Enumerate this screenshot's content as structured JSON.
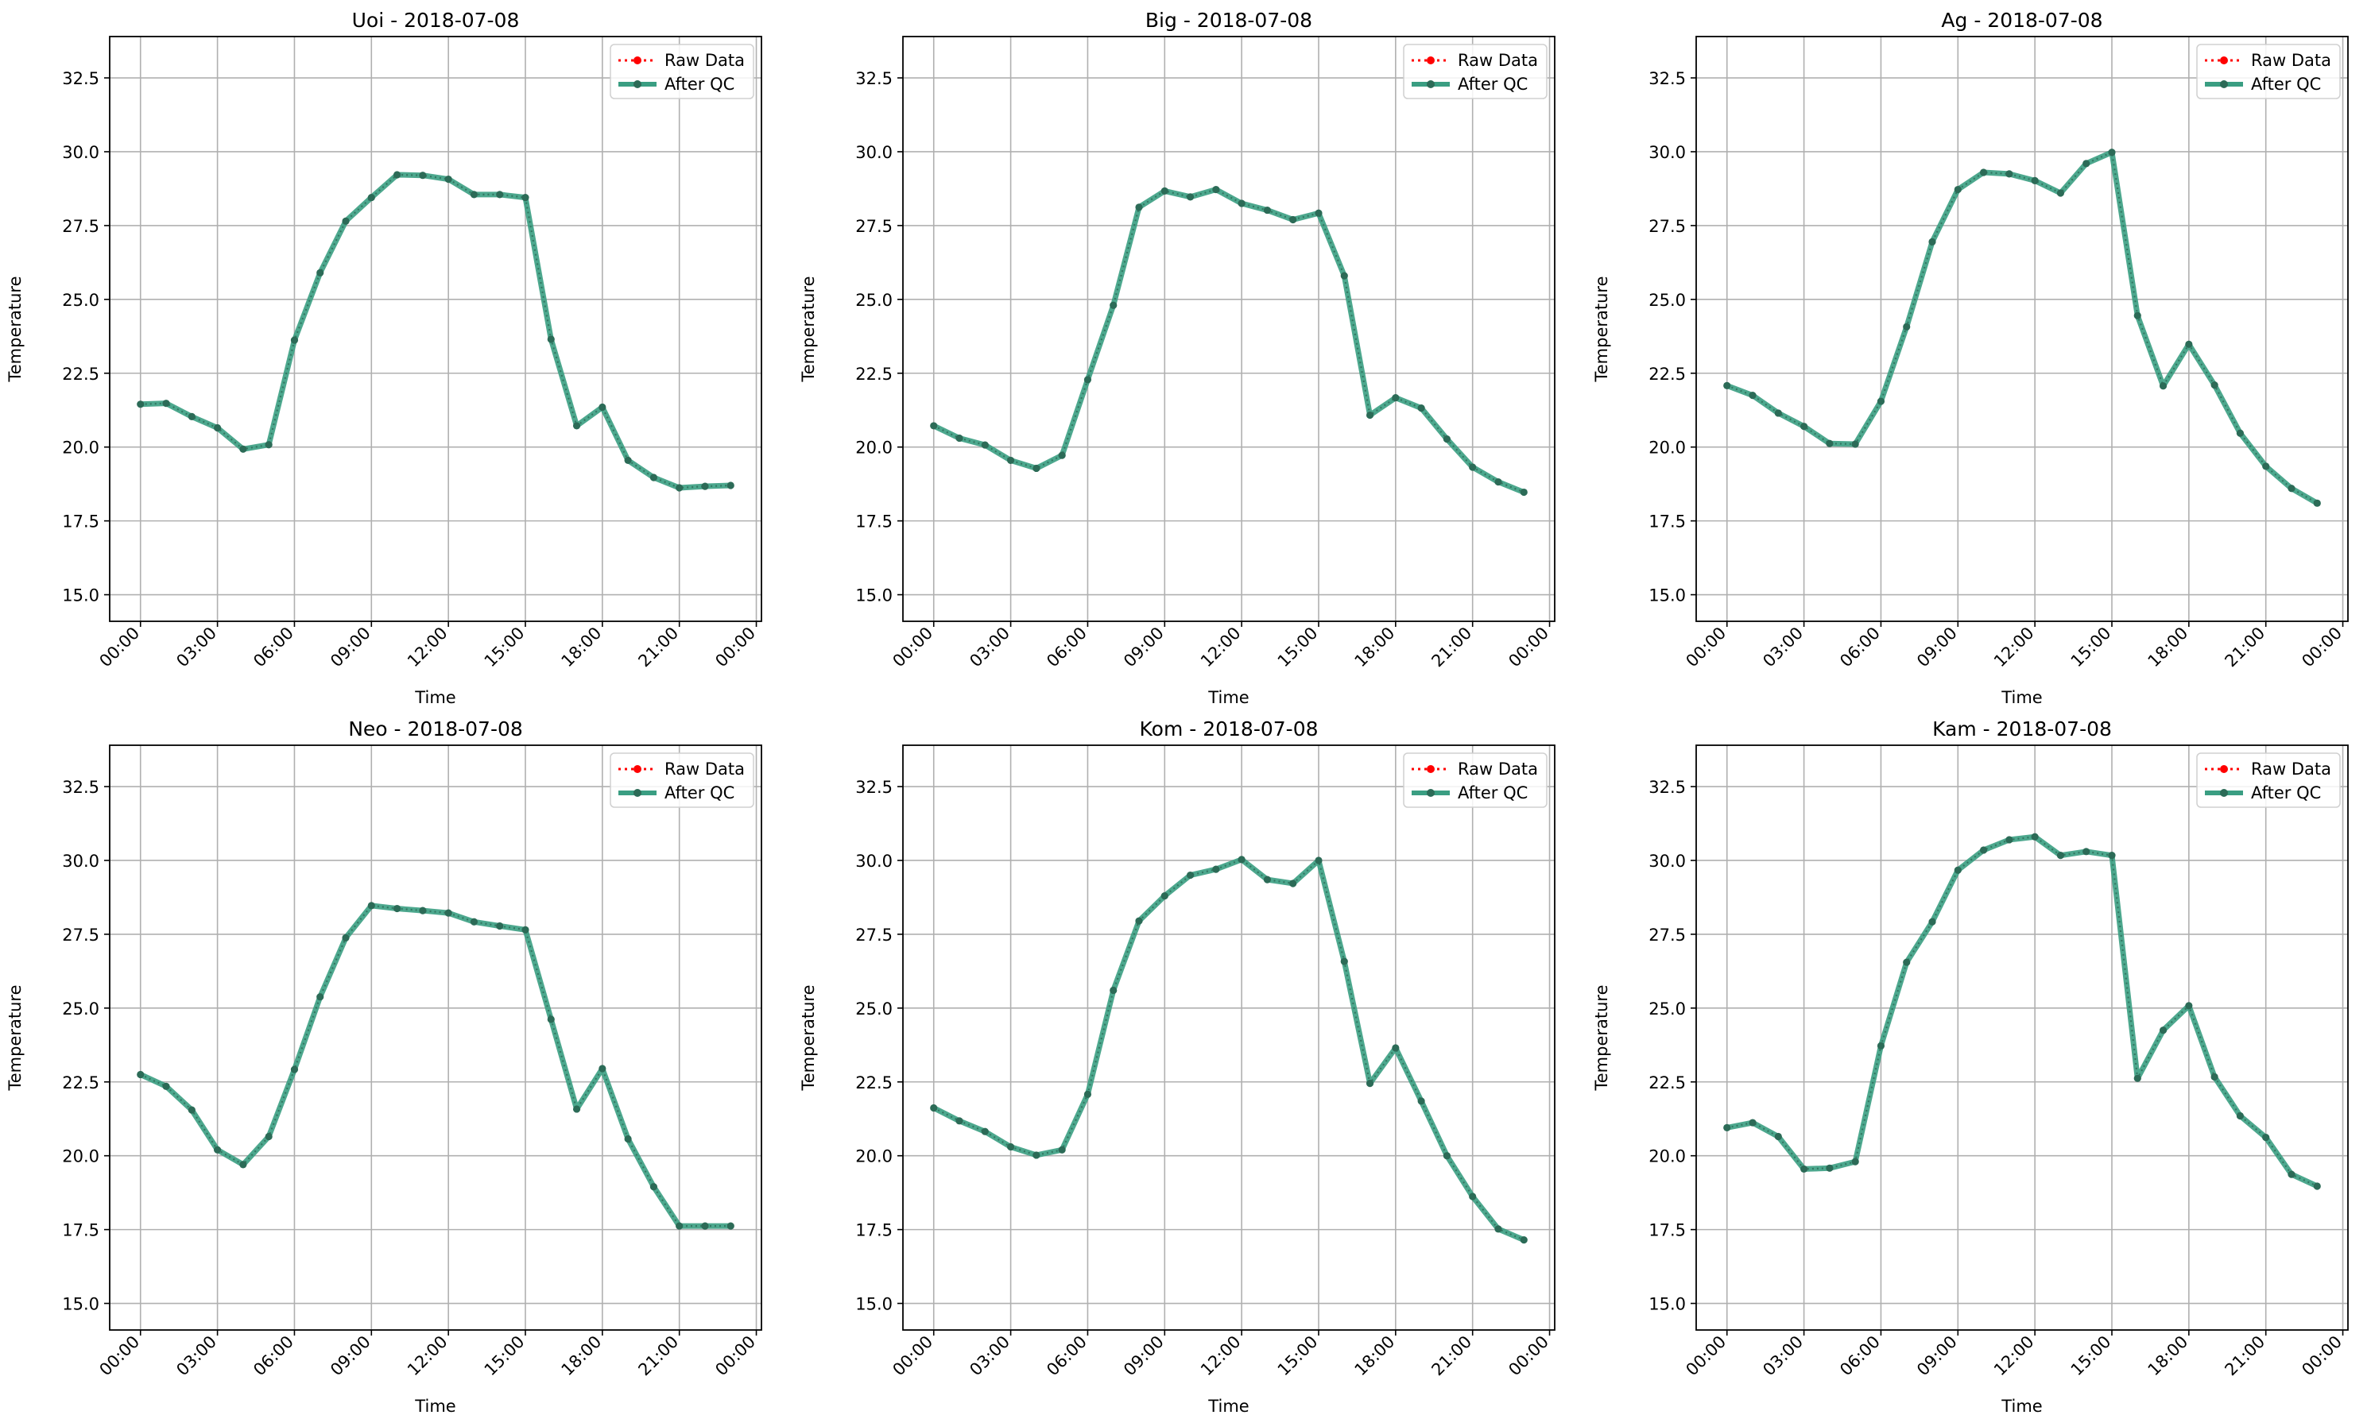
{
  "chart_data": [
    {
      "type": "line",
      "title": "Uoi - 2018-07-08",
      "xlabel": "Time",
      "ylabel": "Temperature",
      "x_ticks": [
        "00:00",
        "03:00",
        "06:00",
        "09:00",
        "12:00",
        "15:00",
        "18:00",
        "21:00",
        "00:00"
      ],
      "y_ticks": [
        "15.0",
        "17.5",
        "20.0",
        "22.5",
        "25.0",
        "27.5",
        "30.0",
        "32.5"
      ],
      "ylim": [
        14.1,
        33.9
      ],
      "xlim": [
        -1.2,
        24.2
      ],
      "grid": true,
      "legend": "top-right",
      "x": [
        0,
        1,
        2,
        3,
        4,
        5,
        6,
        7,
        8,
        9,
        10,
        11,
        12,
        13,
        14,
        15,
        16,
        17,
        18,
        19,
        20,
        21,
        22,
        23
      ],
      "series": [
        {
          "name": "Raw Data",
          "values": [
            21.45,
            21.48,
            21.03,
            20.65,
            19.93,
            20.08,
            23.62,
            25.9,
            27.65,
            28.45,
            29.22,
            29.2,
            29.07,
            28.55,
            28.55,
            28.45,
            23.65,
            20.72,
            21.35,
            19.55,
            18.97,
            18.62,
            18.67,
            18.7
          ]
        },
        {
          "name": "After QC",
          "values": [
            21.45,
            21.48,
            21.03,
            20.65,
            19.93,
            20.08,
            23.62,
            25.9,
            27.65,
            28.45,
            29.22,
            29.2,
            29.07,
            28.55,
            28.55,
            28.45,
            23.65,
            20.72,
            21.35,
            19.55,
            18.97,
            18.62,
            18.67,
            18.7
          ]
        }
      ]
    },
    {
      "type": "line",
      "title": "Big - 2018-07-08",
      "xlabel": "Time",
      "ylabel": "Temperature",
      "x_ticks": [
        "00:00",
        "03:00",
        "06:00",
        "09:00",
        "12:00",
        "15:00",
        "18:00",
        "21:00",
        "00:00"
      ],
      "y_ticks": [
        "15.0",
        "17.5",
        "20.0",
        "22.5",
        "25.0",
        "27.5",
        "30.0",
        "32.5"
      ],
      "ylim": [
        14.1,
        33.9
      ],
      "xlim": [
        -1.2,
        24.2
      ],
      "grid": true,
      "legend": "top-right",
      "x": [
        0,
        1,
        2,
        3,
        4,
        5,
        6,
        7,
        8,
        9,
        10,
        11,
        12,
        13,
        14,
        15,
        16,
        17,
        18,
        19,
        20,
        21,
        22,
        23
      ],
      "series": [
        {
          "name": "Raw Data",
          "values": [
            20.72,
            20.3,
            20.07,
            19.55,
            19.28,
            19.72,
            22.28,
            24.8,
            28.12,
            28.67,
            28.47,
            28.72,
            28.25,
            28.02,
            27.7,
            27.92,
            25.8,
            21.08,
            21.67,
            21.32,
            20.27,
            19.32,
            18.82,
            18.47
          ]
        },
        {
          "name": "After QC",
          "values": [
            20.72,
            20.3,
            20.07,
            19.55,
            19.28,
            19.72,
            22.28,
            24.8,
            28.12,
            28.67,
            28.47,
            28.72,
            28.25,
            28.02,
            27.7,
            27.92,
            25.8,
            21.08,
            21.67,
            21.32,
            20.27,
            19.32,
            18.82,
            18.47
          ]
        }
      ]
    },
    {
      "type": "line",
      "title": "Ag - 2018-07-08",
      "xlabel": "Time",
      "ylabel": "Temperature",
      "x_ticks": [
        "00:00",
        "03:00",
        "06:00",
        "09:00",
        "12:00",
        "15:00",
        "18:00",
        "21:00",
        "00:00"
      ],
      "y_ticks": [
        "15.0",
        "17.5",
        "20.0",
        "22.5",
        "25.0",
        "27.5",
        "30.0",
        "32.5"
      ],
      "ylim": [
        14.1,
        33.9
      ],
      "xlim": [
        -1.2,
        24.2
      ],
      "grid": true,
      "legend": "top-right",
      "x": [
        0,
        1,
        2,
        3,
        4,
        5,
        6,
        7,
        8,
        9,
        10,
        11,
        12,
        13,
        14,
        15,
        16,
        17,
        18,
        19,
        20,
        21,
        22,
        23
      ],
      "series": [
        {
          "name": "Raw Data",
          "values": [
            22.08,
            21.75,
            21.15,
            20.7,
            20.12,
            20.1,
            21.55,
            24.07,
            26.95,
            28.72,
            29.3,
            29.25,
            29.02,
            28.6,
            29.6,
            29.98,
            24.45,
            22.07,
            23.48,
            22.1,
            20.47,
            19.35,
            18.6,
            18.1
          ]
        },
        {
          "name": "After QC",
          "values": [
            22.08,
            21.75,
            21.15,
            20.7,
            20.12,
            20.1,
            21.55,
            24.07,
            26.95,
            28.72,
            29.3,
            29.25,
            29.02,
            28.6,
            29.6,
            29.98,
            24.45,
            22.07,
            23.48,
            22.1,
            20.47,
            19.35,
            18.6,
            18.1
          ]
        }
      ]
    },
    {
      "type": "line",
      "title": "Neo - 2018-07-08",
      "xlabel": "Time",
      "ylabel": "Temperature",
      "x_ticks": [
        "00:00",
        "03:00",
        "06:00",
        "09:00",
        "12:00",
        "15:00",
        "18:00",
        "21:00",
        "00:00"
      ],
      "y_ticks": [
        "15.0",
        "17.5",
        "20.0",
        "22.5",
        "25.0",
        "27.5",
        "30.0",
        "32.5"
      ],
      "ylim": [
        14.1,
        33.9
      ],
      "xlim": [
        -1.2,
        24.2
      ],
      "grid": true,
      "legend": "top-right",
      "x": [
        0,
        1,
        2,
        3,
        4,
        5,
        6,
        7,
        8,
        9,
        10,
        11,
        12,
        13,
        14,
        15,
        16,
        17,
        18,
        19,
        20,
        21,
        22,
        23
      ],
      "series": [
        {
          "name": "Raw Data",
          "values": [
            22.75,
            22.35,
            21.55,
            20.2,
            19.7,
            20.65,
            22.92,
            25.38,
            27.38,
            28.47,
            28.37,
            28.3,
            28.22,
            27.92,
            27.78,
            27.65,
            24.62,
            21.58,
            22.95,
            20.57,
            18.95,
            17.62,
            17.62,
            17.62
          ]
        },
        {
          "name": "After QC",
          "values": [
            22.75,
            22.35,
            21.55,
            20.2,
            19.7,
            20.65,
            22.92,
            25.38,
            27.38,
            28.47,
            28.37,
            28.3,
            28.22,
            27.92,
            27.78,
            27.65,
            24.62,
            21.58,
            22.95,
            20.57,
            18.95,
            17.62,
            17.62,
            17.62
          ]
        }
      ]
    },
    {
      "type": "line",
      "title": "Kom - 2018-07-08",
      "xlabel": "Time",
      "ylabel": "Temperature",
      "x_ticks": [
        "00:00",
        "03:00",
        "06:00",
        "09:00",
        "12:00",
        "15:00",
        "18:00",
        "21:00",
        "00:00"
      ],
      "y_ticks": [
        "15.0",
        "17.5",
        "20.0",
        "22.5",
        "25.0",
        "27.5",
        "30.0",
        "32.5"
      ],
      "ylim": [
        14.1,
        33.9
      ],
      "xlim": [
        -1.2,
        24.2
      ],
      "grid": true,
      "legend": "top-right",
      "x": [
        0,
        1,
        2,
        3,
        4,
        5,
        6,
        7,
        8,
        9,
        10,
        11,
        12,
        13,
        14,
        15,
        16,
        17,
        18,
        19,
        20,
        21,
        22,
        23
      ],
      "series": [
        {
          "name": "Raw Data",
          "values": [
            21.62,
            21.18,
            20.82,
            20.3,
            20.02,
            20.2,
            22.08,
            25.6,
            27.95,
            28.8,
            29.5,
            29.7,
            30.03,
            29.35,
            29.22,
            30.0,
            26.58,
            22.45,
            23.65,
            21.85,
            20.0,
            18.62,
            17.52,
            17.15
          ]
        },
        {
          "name": "After QC",
          "values": [
            21.62,
            21.18,
            20.82,
            20.3,
            20.02,
            20.2,
            22.08,
            25.6,
            27.95,
            28.8,
            29.5,
            29.7,
            30.03,
            29.35,
            29.22,
            30.0,
            26.58,
            22.45,
            23.65,
            21.85,
            20.0,
            18.62,
            17.52,
            17.15
          ]
        }
      ]
    },
    {
      "type": "line",
      "title": "Kam - 2018-07-08",
      "xlabel": "Time",
      "ylabel": "Temperature",
      "x_ticks": [
        "00:00",
        "03:00",
        "06:00",
        "09:00",
        "12:00",
        "15:00",
        "18:00",
        "21:00",
        "00:00"
      ],
      "y_ticks": [
        "15.0",
        "17.5",
        "20.0",
        "22.5",
        "25.0",
        "27.5",
        "30.0",
        "32.5"
      ],
      "ylim": [
        14.1,
        33.9
      ],
      "xlim": [
        -1.2,
        24.2
      ],
      "grid": true,
      "legend": "top-right",
      "x": [
        0,
        1,
        2,
        3,
        4,
        5,
        6,
        7,
        8,
        9,
        10,
        11,
        12,
        13,
        14,
        15,
        16,
        17,
        18,
        19,
        20,
        21,
        22,
        23
      ],
      "series": [
        {
          "name": "Raw Data",
          "values": [
            20.95,
            21.12,
            20.65,
            19.55,
            19.58,
            19.8,
            23.72,
            26.55,
            27.92,
            29.67,
            30.35,
            30.7,
            30.8,
            30.17,
            30.3,
            30.17,
            22.62,
            24.25,
            25.08,
            22.67,
            21.35,
            20.62,
            19.37,
            18.97
          ]
        },
        {
          "name": "After QC",
          "values": [
            20.95,
            21.12,
            20.65,
            19.55,
            19.58,
            19.8,
            23.72,
            26.55,
            27.92,
            29.67,
            30.35,
            30.7,
            30.8,
            30.17,
            30.3,
            30.17,
            22.62,
            24.25,
            25.08,
            22.67,
            21.35,
            20.62,
            19.37,
            18.97
          ]
        }
      ]
    }
  ],
  "colors": {
    "raw": "#ff0000",
    "qc_line": "#3a9e82",
    "qc_marker": "#2c6b57",
    "grid": "#b0b0b0",
    "axes": "#000000"
  }
}
